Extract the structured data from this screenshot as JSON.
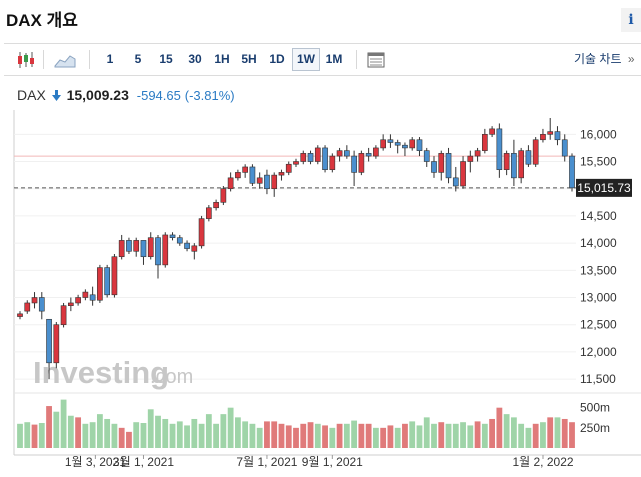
{
  "page": {
    "title": "DAX 개요",
    "info_glyph": "i"
  },
  "toolbar": {
    "candles_icon": "candlestick-chart-icon",
    "area_icon": "area-chart-icon",
    "periods": [
      "1",
      "5",
      "15",
      "30",
      "1H",
      "5H",
      "1D",
      "1W",
      "1M"
    ],
    "selected_period": "1W",
    "table_icon": "table-view-icon",
    "advanced_chart_label": "기술 차트",
    "advanced_chart_arrow": "»"
  },
  "quote": {
    "symbol": "DAX",
    "direction_icon": "down-arrow-icon",
    "price": "15,009.23",
    "change": "-594.65",
    "change_pct": "(-3.81%)",
    "arrow": "🡇"
  },
  "watermark": {
    "brand": "Investing",
    "suffix": ".com"
  },
  "colors": {
    "up": "#d9363e",
    "down": "#4a8fce",
    "vol_up": "#9fd4a8",
    "vol_down": "#e07a7a",
    "accent": "#2b7bc4"
  },
  "chart_data": {
    "type": "candlestick",
    "current_value_label": "15,015.73",
    "current_value": 15015.73,
    "y_axis": {
      "min": 11300,
      "max": 16300,
      "ticks": [
        "16,000",
        "15,500",
        "15,000",
        "14,500",
        "14,000",
        "13,500",
        "13,000",
        "12,500",
        "12,000",
        "11,500"
      ],
      "tick_values": [
        16000,
        15500,
        15000,
        14500,
        14000,
        13500,
        13000,
        12500,
        12000,
        11500
      ]
    },
    "volume_axis": {
      "ticks": [
        "500m",
        "250m"
      ],
      "tick_values": [
        500,
        250
      ],
      "max": 620
    },
    "x_axis": {
      "labels": [
        "1월 3, 2021",
        "3월 1, 2021",
        "7월 1, 2021",
        "9월 1, 2021",
        "1월 2, 2022"
      ]
    },
    "reference_line": 15600,
    "candles": [
      [
        12650,
        12750,
        12600,
        12700
      ],
      [
        12750,
        12950,
        12700,
        12900
      ],
      [
        12900,
        13100,
        12800,
        13000
      ],
      [
        13000,
        13100,
        12600,
        12750
      ],
      [
        12600,
        12600,
        11500,
        11800
      ],
      [
        11800,
        12550,
        11700,
        12500
      ],
      [
        12500,
        12900,
        12450,
        12850
      ],
      [
        12850,
        13000,
        12750,
        12900
      ],
      [
        12900,
        13050,
        12850,
        13000
      ],
      [
        13000,
        13150,
        12950,
        13100
      ],
      [
        13050,
        13200,
        12850,
        12950
      ],
      [
        12950,
        13600,
        12900,
        13550
      ],
      [
        13550,
        13600,
        13000,
        13050
      ],
      [
        13050,
        13800,
        13000,
        13750
      ],
      [
        13750,
        14150,
        13700,
        14050
      ],
      [
        14050,
        14100,
        13800,
        13850
      ],
      [
        13850,
        14100,
        13750,
        14050
      ],
      [
        14050,
        14050,
        13600,
        13750
      ],
      [
        13750,
        14200,
        13700,
        14100
      ],
      [
        14100,
        14150,
        13350,
        13600
      ],
      [
        13600,
        14200,
        13550,
        14150
      ],
      [
        14150,
        14200,
        14050,
        14100
      ],
      [
        14100,
        14150,
        13950,
        14000
      ],
      [
        14000,
        14050,
        13850,
        13900
      ],
      [
        13850,
        14000,
        13700,
        13950
      ],
      [
        13950,
        14500,
        13900,
        14450
      ],
      [
        14450,
        14700,
        14400,
        14650
      ],
      [
        14650,
        14800,
        14600,
        14750
      ],
      [
        14750,
        15050,
        14700,
        15000
      ],
      [
        15000,
        15300,
        14950,
        15200
      ],
      [
        15200,
        15350,
        15150,
        15300
      ],
      [
        15300,
        15450,
        15200,
        15400
      ],
      [
        15400,
        15450,
        15050,
        15100
      ],
      [
        15100,
        15300,
        15000,
        15200
      ],
      [
        15250,
        15350,
        14900,
        15000
      ],
      [
        15000,
        15300,
        14850,
        15250
      ],
      [
        15250,
        15350,
        15150,
        15300
      ],
      [
        15300,
        15500,
        15250,
        15450
      ],
      [
        15450,
        15550,
        15400,
        15500
      ],
      [
        15500,
        15700,
        15450,
        15650
      ],
      [
        15650,
        15700,
        15450,
        15500
      ],
      [
        15500,
        15800,
        15450,
        15750
      ],
      [
        15750,
        15800,
        15300,
        15350
      ],
      [
        15350,
        15650,
        15300,
        15600
      ],
      [
        15600,
        15750,
        15500,
        15700
      ],
      [
        15700,
        15800,
        15550,
        15600
      ],
      [
        15600,
        15700,
        15050,
        15300
      ],
      [
        15300,
        15700,
        15250,
        15650
      ],
      [
        15650,
        15750,
        15500,
        15600
      ],
      [
        15600,
        15800,
        15550,
        15750
      ],
      [
        15750,
        16000,
        15700,
        15900
      ],
      [
        15900,
        16000,
        15750,
        15850
      ],
      [
        15850,
        15900,
        15650,
        15800
      ],
      [
        15800,
        15850,
        15600,
        15750
      ],
      [
        15750,
        15950,
        15700,
        15900
      ],
      [
        15900,
        15950,
        15600,
        15700
      ],
      [
        15700,
        15750,
        15400,
        15500
      ],
      [
        15500,
        15600,
        15200,
        15300
      ],
      [
        15300,
        15700,
        15150,
        15650
      ],
      [
        15650,
        15750,
        15100,
        15200
      ],
      [
        15200,
        15400,
        14950,
        15050
      ],
      [
        15050,
        15600,
        15000,
        15500
      ],
      [
        15500,
        15700,
        15300,
        15600
      ],
      [
        15600,
        15750,
        15500,
        15700
      ],
      [
        15700,
        16100,
        15650,
        16000
      ],
      [
        16000,
        16150,
        15950,
        16100
      ],
      [
        16100,
        16200,
        15200,
        15350
      ],
      [
        15350,
        15700,
        15250,
        15650
      ],
      [
        15650,
        15900,
        15050,
        15200
      ],
      [
        15200,
        15750,
        15100,
        15700
      ],
      [
        15700,
        15800,
        15400,
        15450
      ],
      [
        15450,
        15950,
        15400,
        15900
      ],
      [
        15900,
        16100,
        15850,
        16000
      ],
      [
        16000,
        16300,
        15900,
        16050
      ],
      [
        16050,
        16150,
        15800,
        15900
      ],
      [
        15900,
        16000,
        15500,
        15600
      ],
      [
        15600,
        15650,
        14950,
        15016
      ]
    ],
    "volume": [
      [
        300,
        "up"
      ],
      [
        320,
        "up"
      ],
      [
        290,
        "down"
      ],
      [
        310,
        "up"
      ],
      [
        520,
        "down"
      ],
      [
        450,
        "up"
      ],
      [
        600,
        "up"
      ],
      [
        400,
        "up"
      ],
      [
        380,
        "down"
      ],
      [
        300,
        "up"
      ],
      [
        320,
        "up"
      ],
      [
        420,
        "up"
      ],
      [
        360,
        "up"
      ],
      [
        300,
        "up"
      ],
      [
        250,
        "down"
      ],
      [
        200,
        "down"
      ],
      [
        320,
        "up"
      ],
      [
        310,
        "up"
      ],
      [
        480,
        "up"
      ],
      [
        400,
        "up"
      ],
      [
        360,
        "up"
      ],
      [
        300,
        "up"
      ],
      [
        330,
        "up"
      ],
      [
        280,
        "up"
      ],
      [
        360,
        "up"
      ],
      [
        300,
        "up"
      ],
      [
        420,
        "up"
      ],
      [
        300,
        "up"
      ],
      [
        420,
        "up"
      ],
      [
        500,
        "up"
      ],
      [
        380,
        "up"
      ],
      [
        330,
        "up"
      ],
      [
        300,
        "up"
      ],
      [
        250,
        "up"
      ],
      [
        330,
        "down"
      ],
      [
        330,
        "down"
      ],
      [
        300,
        "down"
      ],
      [
        280,
        "down"
      ],
      [
        250,
        "down"
      ],
      [
        300,
        "down"
      ],
      [
        320,
        "down"
      ],
      [
        300,
        "up"
      ],
      [
        280,
        "down"
      ],
      [
        250,
        "up"
      ],
      [
        300,
        "down"
      ],
      [
        300,
        "up"
      ],
      [
        340,
        "up"
      ],
      [
        300,
        "down"
      ],
      [
        300,
        "down"
      ],
      [
        250,
        "up"
      ],
      [
        250,
        "down"
      ],
      [
        280,
        "down"
      ],
      [
        250,
        "up"
      ],
      [
        300,
        "down"
      ],
      [
        330,
        "up"
      ],
      [
        280,
        "up"
      ],
      [
        380,
        "up"
      ],
      [
        300,
        "up"
      ],
      [
        320,
        "down"
      ],
      [
        300,
        "up"
      ],
      [
        300,
        "up"
      ],
      [
        320,
        "up"
      ],
      [
        280,
        "up"
      ],
      [
        330,
        "down"
      ],
      [
        300,
        "up"
      ],
      [
        360,
        "down"
      ],
      [
        500,
        "down"
      ],
      [
        420,
        "up"
      ],
      [
        380,
        "up"
      ],
      [
        300,
        "up"
      ],
      [
        250,
        "up"
      ],
      [
        300,
        "down"
      ],
      [
        320,
        "up"
      ],
      [
        380,
        "down"
      ],
      [
        380,
        "up"
      ],
      [
        360,
        "down"
      ],
      [
        320,
        "down"
      ]
    ]
  }
}
